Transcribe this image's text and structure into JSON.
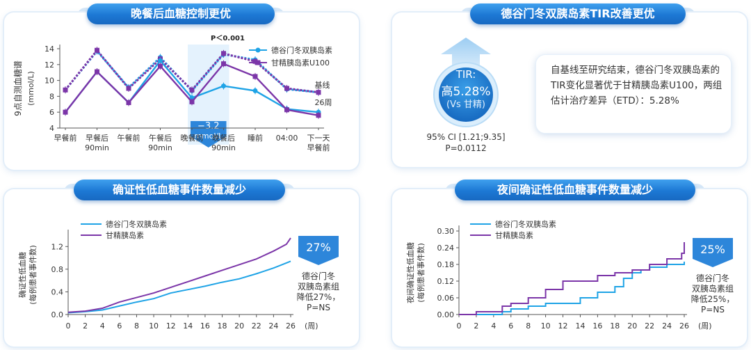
{
  "panels": {
    "top_left_title": "晚餐后血糖控制更优",
    "top_right_title": "德谷门冬双胰岛素TIR改善更优",
    "bottom_left_title": "确证性低血糖事件数量减少",
    "bottom_right_title": "夜间确证性低血糖事件数量减少"
  },
  "tir": {
    "label1": "TIR:",
    "label2": "高5.28%",
    "label3": "(Vs 甘精)",
    "ci": "95% CI [1.21;9.35]",
    "p": "P=0.0112",
    "description": "自基线至研究结束，德谷门冬双胰岛素的TIR变化显著优于甘精胰岛素U100，两组估计治疗差异（ETD）：5.28%"
  },
  "colors": {
    "degludec": "#1ea3e6",
    "glargine": "#7b35a8",
    "accent_blue": "#1d78d4"
  },
  "chart_data": [
    {
      "type": "line",
      "title": "晚餐后血糖控制更优",
      "ylabel": "9点自测血糖谱",
      "yunit": "(mmol/L)",
      "ylim": [
        4,
        14
      ],
      "yticks": [
        "4",
        "6",
        "8",
        "10",
        "12",
        "14"
      ],
      "categories": [
        "早餐前",
        "早餐后\n90min",
        "午餐前",
        "午餐后\n90min",
        "晚餐前",
        "晚餐后\n90min",
        "睡前",
        "04:00",
        "下一天\n早餐前"
      ],
      "series": [
        {
          "name": "德谷门冬双胰岛素",
          "phase": "26周",
          "values": [
            6.0,
            11.1,
            7.2,
            12.5,
            7.8,
            9.3,
            8.7,
            6.4,
            6.0
          ]
        },
        {
          "name": "甘精胰岛素U100",
          "phase": "26周",
          "values": [
            6.0,
            11.1,
            7.2,
            11.8,
            7.3,
            12.1,
            10.5,
            6.3,
            5.6
          ]
        },
        {
          "name": "德谷门冬双胰岛素",
          "phase": "基线",
          "values": [
            8.8,
            13.7,
            9.1,
            12.9,
            8.7,
            13.3,
            12.6,
            8.9,
            8.5
          ]
        },
        {
          "name": "甘精胰岛素U100",
          "phase": "基线",
          "values": [
            8.8,
            13.8,
            9.0,
            12.7,
            8.8,
            13.4,
            12.4,
            9.0,
            8.5
          ]
        }
      ],
      "annotations": {
        "p_value": "P＜0.001",
        "difference_value": "−3.2",
        "difference_unit": "mmol/L",
        "baseline_label": "基线",
        "week26_label": "26周"
      }
    },
    {
      "type": "line",
      "title": "确证性低血糖事件数量减少",
      "ylabel": "确证性低血糖",
      "yunit": "(每例患者事件数)",
      "xunit": "(周)",
      "xlim": [
        0,
        26
      ],
      "ylim": [
        0,
        1.4
      ],
      "xticks": [
        "0",
        "2",
        "4",
        "6",
        "8",
        "10",
        "12",
        "14",
        "16",
        "18",
        "20",
        "22",
        "24",
        "26"
      ],
      "yticks": [
        "0.0",
        "0.4",
        "0.8",
        "1.2"
      ],
      "series": [
        {
          "name": "德谷门冬双胰岛素",
          "x": [
            0,
            2,
            4,
            6,
            8,
            10,
            12,
            14,
            16,
            18,
            20,
            22,
            24,
            26
          ],
          "y": [
            0.03,
            0.05,
            0.08,
            0.15,
            0.22,
            0.28,
            0.38,
            0.44,
            0.5,
            0.57,
            0.63,
            0.72,
            0.82,
            0.94
          ]
        },
        {
          "name": "甘精胰岛素",
          "x": [
            0,
            2,
            4,
            6,
            8,
            10,
            12,
            14,
            16,
            18,
            20,
            22,
            24,
            25.5,
            26
          ],
          "y": [
            0.04,
            0.06,
            0.11,
            0.22,
            0.3,
            0.38,
            0.48,
            0.58,
            0.68,
            0.78,
            0.88,
            0.98,
            1.12,
            1.24,
            1.35
          ]
        }
      ],
      "callout": {
        "value": "27%",
        "text": "德谷门冬双胰岛素组降低27%，P=NS"
      }
    },
    {
      "type": "line",
      "title": "夜间确证性低血糖事件数量减少",
      "ylabel": "夜间确证性低血糖",
      "yunit": "(每例患者事件数)",
      "xunit": "(周)",
      "xlim": [
        0,
        26
      ],
      "ylim": [
        0,
        0.3
      ],
      "xticks": [
        "0",
        "2",
        "4",
        "6",
        "8",
        "10",
        "12",
        "14",
        "16",
        "18",
        "20",
        "22",
        "24",
        "26"
      ],
      "yticks": [
        "0.00",
        "0.06",
        "0.12",
        "0.18",
        "0.24",
        "0.30"
      ],
      "series": [
        {
          "name": "德谷门冬双胰岛素",
          "x": [
            0,
            5,
            6,
            8,
            10,
            13,
            14,
            16,
            18,
            19,
            20,
            21,
            22,
            24,
            26
          ],
          "y": [
            0.0,
            0.01,
            0.02,
            0.03,
            0.04,
            0.04,
            0.06,
            0.08,
            0.1,
            0.13,
            0.15,
            0.16,
            0.17,
            0.18,
            0.19
          ]
        },
        {
          "name": "甘精胰岛素",
          "x": [
            0,
            2,
            4,
            5,
            6,
            8,
            10,
            12,
            14,
            16,
            18,
            20,
            22,
            24,
            25.7,
            26
          ],
          "y": [
            0.0,
            0.01,
            0.01,
            0.03,
            0.04,
            0.06,
            0.09,
            0.12,
            0.12,
            0.14,
            0.15,
            0.16,
            0.18,
            0.2,
            0.22,
            0.26
          ]
        }
      ],
      "callout": {
        "value": "25%",
        "text": "德谷门冬双胰岛素组降低25%，P=NS"
      }
    }
  ]
}
